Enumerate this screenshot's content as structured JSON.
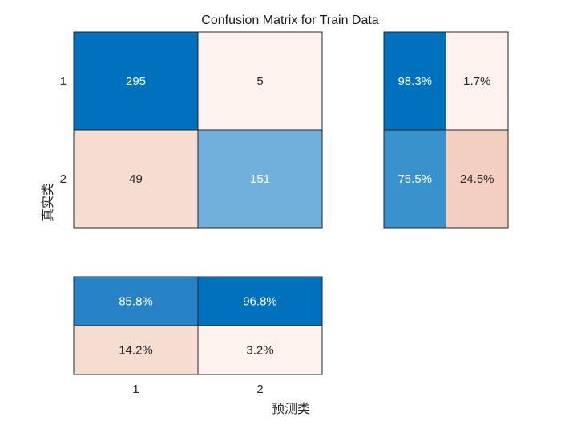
{
  "chart_data": {
    "type": "heatmap",
    "title": "Confusion Matrix for Train Data",
    "xlabel": "预测类",
    "ylabel": "真实类",
    "class_labels": [
      "1",
      "2"
    ],
    "confusion_matrix": {
      "values": [
        [
          295,
          5
        ],
        [
          49,
          151
        ]
      ],
      "colors": [
        [
          "#0072BD",
          "#FDF2EE"
        ],
        [
          "#F6DDD2",
          "#72B0DC"
        ]
      ]
    },
    "row_summary": {
      "values": [
        [
          "98.3%",
          "1.7%"
        ],
        [
          "75.5%",
          "24.5%"
        ]
      ],
      "colors": [
        [
          "#0072BD",
          "#FDF2EE"
        ],
        [
          "#3A92CD",
          "#F3CFC0"
        ]
      ]
    },
    "column_summary": {
      "values": [
        [
          "85.8%",
          "96.8%"
        ],
        [
          "14.2%",
          "3.2%"
        ]
      ],
      "colors": [
        [
          "#2783C6",
          "#0072BD"
        ],
        [
          "#F6DDD2",
          "#FDF2EE"
        ]
      ]
    },
    "text_colors": {
      "on_dark": "#ffffff",
      "on_light": "#262626"
    },
    "grid": false
  }
}
